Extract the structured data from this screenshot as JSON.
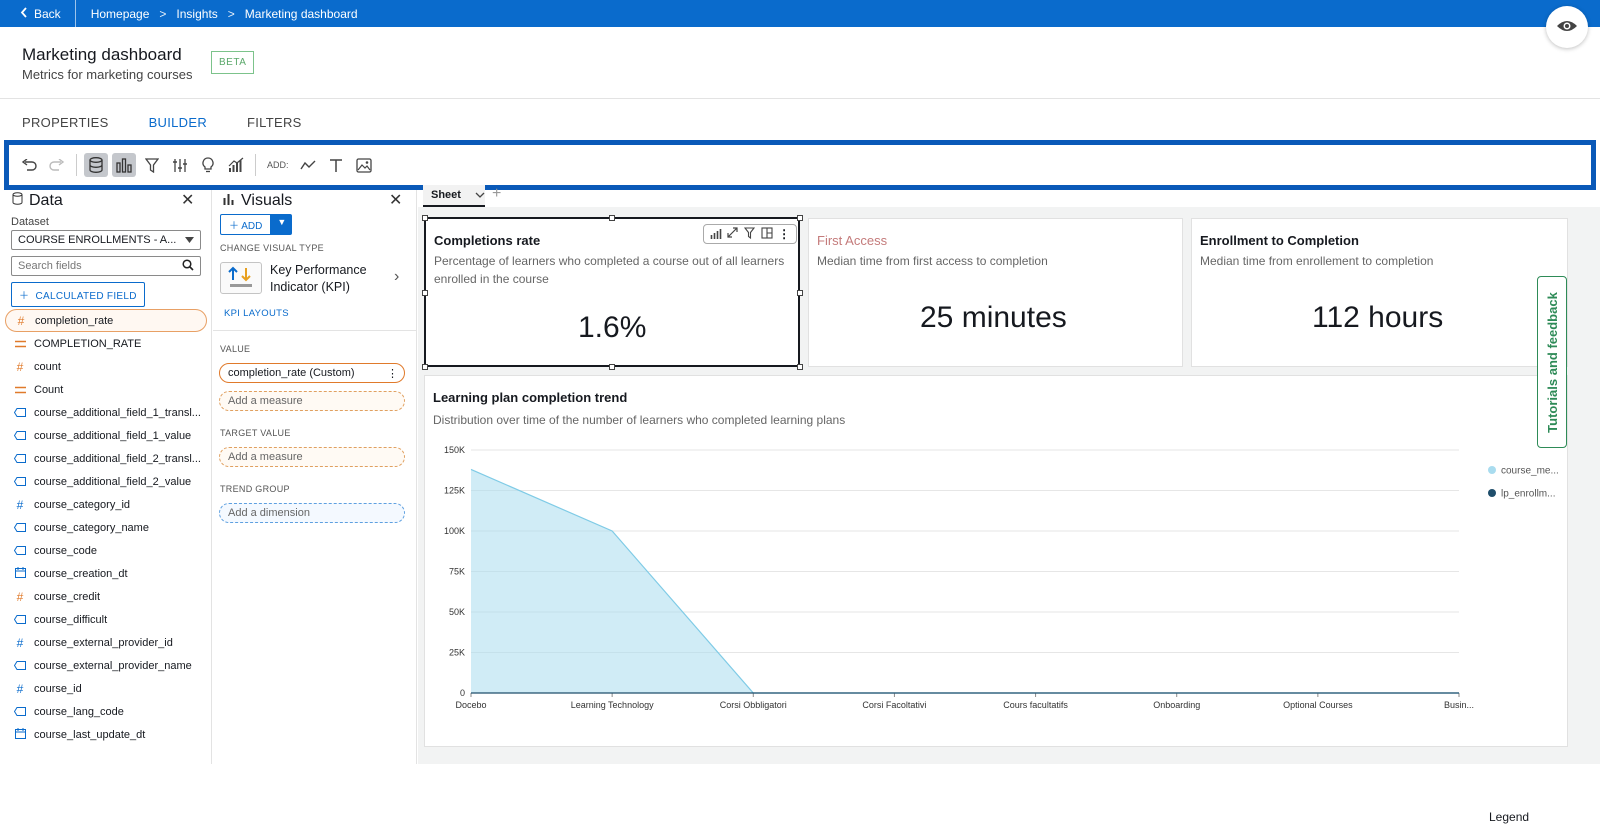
{
  "topbar": {
    "back": "Back",
    "crumbs": [
      "Homepage",
      "Insights",
      "Marketing dashboard"
    ]
  },
  "header": {
    "title": "Marketing dashboard",
    "subtitle": "Metrics for marketing courses",
    "badge": "BETA"
  },
  "tabs": [
    "PROPERTIES",
    "BUILDER",
    "FILTERS"
  ],
  "toolbar": {
    "add_label": "ADD:"
  },
  "data_panel": {
    "title": "Data",
    "dataset_label": "Dataset",
    "dataset_value": "COURSE ENROLLMENTS - A...",
    "search_placeholder": "Search fields",
    "calc_field": "CALCULATED FIELD",
    "fields": [
      {
        "name": "completion_rate",
        "type": "#",
        "selected": true
      },
      {
        "name": "COMPLETION_RATE",
        "type": "="
      },
      {
        "name": "count",
        "type": "#"
      },
      {
        "name": "Count",
        "type": "="
      },
      {
        "name": "course_additional_field_1_transl...",
        "type": "tag"
      },
      {
        "name": "course_additional_field_1_value",
        "type": "tag"
      },
      {
        "name": "course_additional_field_2_transl...",
        "type": "tag"
      },
      {
        "name": "course_additional_field_2_value",
        "type": "tag"
      },
      {
        "name": "course_category_id",
        "type": "#b"
      },
      {
        "name": "course_category_name",
        "type": "tag"
      },
      {
        "name": "course_code",
        "type": "tag"
      },
      {
        "name": "course_creation_dt",
        "type": "cal"
      },
      {
        "name": "course_credit",
        "type": "#"
      },
      {
        "name": "course_difficult",
        "type": "tag"
      },
      {
        "name": "course_external_provider_id",
        "type": "#b"
      },
      {
        "name": "course_external_provider_name",
        "type": "tag"
      },
      {
        "name": "course_id",
        "type": "#b"
      },
      {
        "name": "course_lang_code",
        "type": "tag"
      },
      {
        "name": "course_last_update_dt",
        "type": "cal"
      }
    ]
  },
  "visuals_panel": {
    "title": "Visuals",
    "add": "ADD",
    "change_type_label": "CHANGE VISUAL TYPE",
    "visual_type": "Key Performance Indicator (KPI)",
    "kpi_layouts": "KPI LAYOUTS",
    "value_label": "VALUE",
    "value_field": "completion_rate (Custom)",
    "add_measure": "Add a measure",
    "target_label": "TARGET VALUE",
    "trend_label": "TREND GROUP",
    "add_dimension": "Add a dimension"
  },
  "sheet": {
    "tab": "Sheet"
  },
  "kpis": [
    {
      "title": "Completions rate",
      "desc": "Percentage of learners who completed a course out of all learners enrolled in the course",
      "value": "1.6%"
    },
    {
      "title": "First Access",
      "desc": "Median time from first access to completion",
      "value": "25 minutes"
    },
    {
      "title": "Enrollment to Completion",
      "desc": "Median time from enrollement to completion",
      "value": "112 hours"
    }
  ],
  "trend": {
    "title": "Learning plan completion trend",
    "desc": "Distribution over time of the number of learners who completed learning plans",
    "legend_title": "Legend"
  },
  "tutorial": "Tutorials and feedback",
  "colors": {
    "brand": "#0a6bcc",
    "area": "#a9dcef",
    "series2": "#1f4e6b",
    "accent_orange": "#e07a2b"
  },
  "chart_data": {
    "type": "area",
    "title": "Learning plan completion trend",
    "categories": [
      "Docebo",
      "Learning Technology",
      "Corsi Obbligatori",
      "Corsi Facoltativi",
      "Cours facultatifs",
      "Onboarding",
      "Optional Courses",
      "Busin..."
    ],
    "series": [
      {
        "name": "course_me...",
        "values": [
          138000,
          100000,
          0,
          0,
          0,
          0,
          0,
          0
        ]
      },
      {
        "name": "lp_enrollm...",
        "values": [
          0,
          0,
          0,
          0,
          0,
          0,
          0,
          0
        ]
      }
    ],
    "yticks": [
      "0",
      "25K",
      "50K",
      "75K",
      "100K",
      "125K",
      "150K"
    ],
    "ylim": [
      0,
      150000
    ],
    "grid": true,
    "legend": "right"
  }
}
